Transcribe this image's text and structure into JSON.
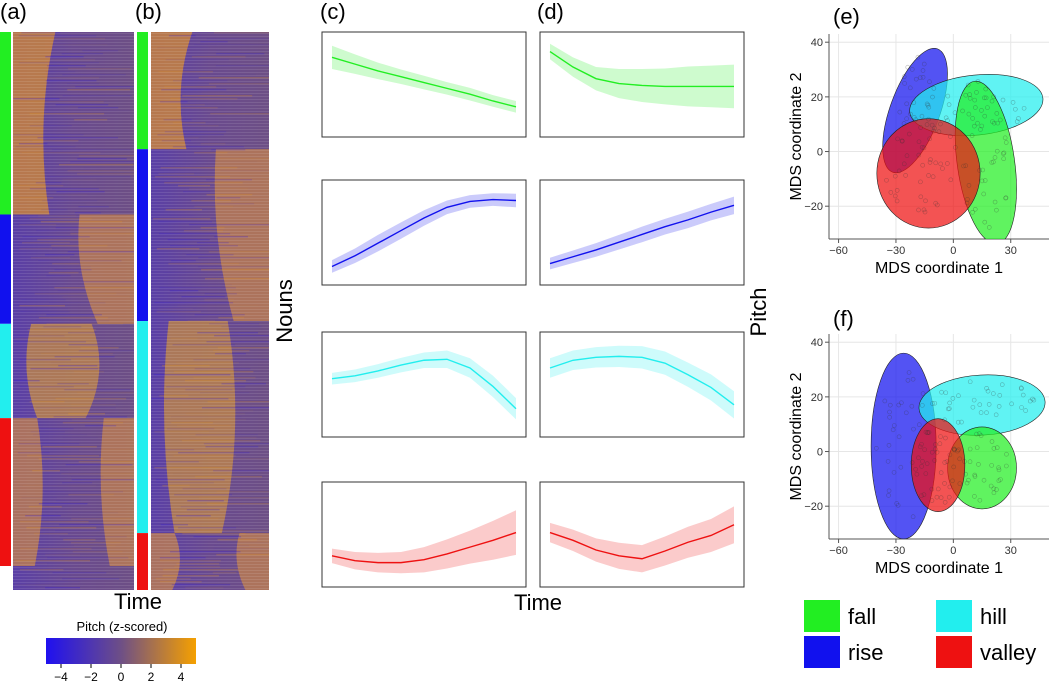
{
  "panel_labels": {
    "a": "(a)",
    "b": "(b)",
    "c": "(c)",
    "d": "(d)",
    "e": "(e)",
    "f": "(f)"
  },
  "axis_text": {
    "time": "Time",
    "nouns": "Nouns",
    "pitch": "Pitch"
  },
  "legend": [
    {
      "label": "fall",
      "color": "#22ee22"
    },
    {
      "label": "hill",
      "color": "#22eeee"
    },
    {
      "label": "rise",
      "color": "#1111ee"
    },
    {
      "label": "valley",
      "color": "#ee1111"
    }
  ],
  "colors": {
    "fall": "#22ee22",
    "rise": "#1111ee",
    "hill": "#22eeee",
    "valley": "#ee1111",
    "heat_low": "#1f10f0",
    "heat_mid": "#6e4f86",
    "heat_high": "#f5a000"
  },
  "chart_data": [
    {
      "type": "heatmap",
      "panel": "a",
      "xlabel": "Time",
      "ylabel": "Nouns",
      "groups": [
        {
          "name": "fall",
          "fraction": 0.327
        },
        {
          "name": "rise",
          "fraction": 0.196
        },
        {
          "name": "hill",
          "fraction": 0.169
        },
        {
          "name": "valley",
          "fraction": 0.265
        }
      ],
      "colorbar": {
        "title": "Pitch (z-scored)",
        "ticks": [
          -4,
          -2,
          0,
          2,
          4
        ],
        "range": [
          -5,
          5
        ]
      }
    },
    {
      "type": "heatmap",
      "panel": "b",
      "xlabel": "Time",
      "groups": [
        {
          "name": "fall",
          "fraction": 0.21
        },
        {
          "name": "rise",
          "fraction": 0.308
        },
        {
          "name": "hill",
          "fraction": 0.38
        },
        {
          "name": "valley",
          "fraction": 0.102
        }
      ]
    },
    {
      "type": "line",
      "panel": "c",
      "xlabel": "Time",
      "ylabel": "Pitch",
      "series": [
        {
          "name": "fall",
          "values": [
            0.78,
            0.71,
            0.64,
            0.58,
            0.52,
            0.46,
            0.4,
            0.33,
            0.27
          ],
          "band": [
            0.24,
            0.2,
            0.17,
            0.15,
            0.14,
            0.13,
            0.13,
            0.12,
            0.12
          ]
        },
        {
          "name": "rise",
          "values": [
            0.15,
            0.26,
            0.39,
            0.52,
            0.65,
            0.76,
            0.82,
            0.84,
            0.83
          ],
          "band": [
            0.13,
            0.15,
            0.17,
            0.17,
            0.16,
            0.14,
            0.13,
            0.13,
            0.14
          ]
        },
        {
          "name": "hill",
          "values": [
            0.56,
            0.59,
            0.64,
            0.7,
            0.75,
            0.76,
            0.67,
            0.48,
            0.25
          ],
          "band": [
            0.12,
            0.13,
            0.14,
            0.15,
            0.16,
            0.18,
            0.2,
            0.22,
            0.22
          ]
        },
        {
          "name": "valley",
          "values": [
            0.28,
            0.23,
            0.21,
            0.21,
            0.24,
            0.3,
            0.37,
            0.44,
            0.52
          ],
          "band": [
            0.15,
            0.18,
            0.2,
            0.22,
            0.26,
            0.3,
            0.34,
            0.4,
            0.46
          ]
        }
      ]
    },
    {
      "type": "line",
      "panel": "d",
      "xlabel": "Time",
      "ylabel": "Pitch",
      "series": [
        {
          "name": "fall",
          "values": [
            0.84,
            0.68,
            0.56,
            0.51,
            0.49,
            0.48,
            0.48,
            0.48,
            0.48
          ],
          "band": [
            0.16,
            0.2,
            0.24,
            0.3,
            0.34,
            0.37,
            0.41,
            0.43,
            0.45
          ]
        },
        {
          "name": "rise",
          "values": [
            0.18,
            0.25,
            0.32,
            0.4,
            0.48,
            0.56,
            0.63,
            0.71,
            0.78
          ],
          "band": [
            0.12,
            0.13,
            0.14,
            0.15,
            0.16,
            0.16,
            0.17,
            0.17,
            0.18
          ]
        },
        {
          "name": "hill",
          "values": [
            0.67,
            0.75,
            0.78,
            0.79,
            0.78,
            0.72,
            0.6,
            0.47,
            0.29
          ],
          "band": [
            0.2,
            0.2,
            0.21,
            0.22,
            0.23,
            0.24,
            0.25,
            0.27,
            0.28
          ]
        },
        {
          "name": "valley",
          "values": [
            0.52,
            0.44,
            0.34,
            0.28,
            0.25,
            0.33,
            0.42,
            0.49,
            0.6
          ],
          "band": [
            0.2,
            0.22,
            0.24,
            0.27,
            0.28,
            0.3,
            0.32,
            0.34,
            0.38
          ]
        }
      ]
    },
    {
      "type": "scatter",
      "panel": "e",
      "title": "",
      "xlabel": "MDS coordinate 1",
      "ylabel": "MDS coordinate 2",
      "xlim": [
        -65,
        50
      ],
      "ylim": [
        -32,
        43
      ],
      "xticks": [
        -60,
        -30,
        0,
        30
      ],
      "yticks": [
        -20,
        0,
        20,
        40
      ],
      "ellipses": [
        {
          "name": "rise",
          "cx": -20,
          "cy": 15,
          "rx": 13,
          "ry": 24,
          "angle": 20
        },
        {
          "name": "hill",
          "cx": 12,
          "cy": 17,
          "rx": 35,
          "ry": 11,
          "angle": -6
        },
        {
          "name": "fall",
          "cx": 17,
          "cy": -4,
          "rx": 15,
          "ry": 30,
          "angle": -8
        },
        {
          "name": "valley",
          "cx": -13,
          "cy": -8,
          "rx": 27,
          "ry": 20,
          "angle": 0
        }
      ]
    },
    {
      "type": "scatter",
      "panel": "f",
      "title": "",
      "xlabel": "MDS coordinate 1",
      "ylabel": "MDS coordinate 2",
      "xlim": [
        -65,
        50
      ],
      "ylim": [
        -32,
        43
      ],
      "xticks": [
        -60,
        -30,
        0,
        30
      ],
      "yticks": [
        -20,
        0,
        20,
        40
      ],
      "ellipses": [
        {
          "name": "rise",
          "cx": -26,
          "cy": 2,
          "rx": 17,
          "ry": 34,
          "angle": 0
        },
        {
          "name": "hill",
          "cx": 15,
          "cy": 17,
          "rx": 33,
          "ry": 11,
          "angle": -3
        },
        {
          "name": "fall",
          "cx": 15,
          "cy": -6,
          "rx": 18,
          "ry": 15,
          "angle": 0
        },
        {
          "name": "valley",
          "cx": -8,
          "cy": -5,
          "rx": 14,
          "ry": 17,
          "angle": 0
        }
      ]
    }
  ]
}
